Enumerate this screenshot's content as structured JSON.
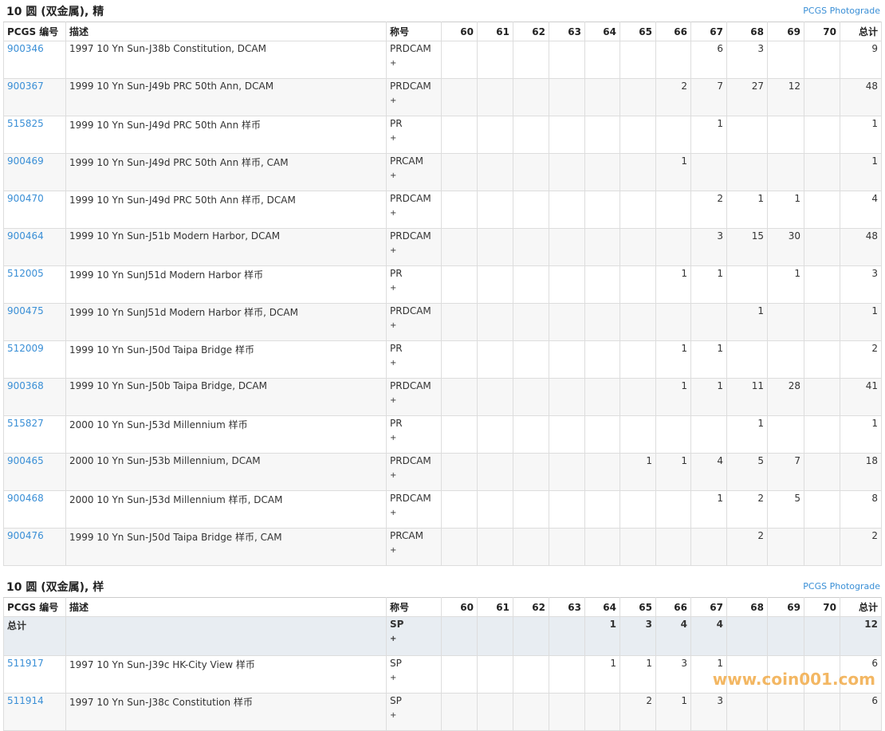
{
  "sections": [
    {
      "title": "10 圆 (双金属), 精",
      "link": "PCGS Photograde",
      "headers": [
        "PCGS 编号",
        "描述",
        "称号",
        "60",
        "61",
        "62",
        "63",
        "64",
        "65",
        "66",
        "67",
        "68",
        "69",
        "70",
        "总计"
      ],
      "total_row": null,
      "rows": [
        {
          "id": "900346",
          "description": "1997 10 Yn Sun-J38b Constitution, DCAM",
          "designation": "PRDCAM",
          "plus": "+",
          "grades": [
            null,
            null,
            null,
            null,
            null,
            null,
            null,
            6,
            3,
            null,
            null
          ],
          "total": 9
        },
        {
          "id": "900367",
          "description": "1999 10 Yn Sun-J49b PRC 50th Ann, DCAM",
          "designation": "PRDCAM",
          "plus": "+",
          "grades": [
            null,
            null,
            null,
            null,
            null,
            null,
            2,
            7,
            27,
            12,
            null
          ],
          "total": 48
        },
        {
          "id": "515825",
          "description": "1999 10 Yn Sun-J49d PRC 50th Ann 样币",
          "designation": "PR",
          "plus": "+",
          "grades": [
            null,
            null,
            null,
            null,
            null,
            null,
            null,
            1,
            null,
            null,
            null
          ],
          "total": 1
        },
        {
          "id": "900469",
          "description": "1999 10 Yn Sun-J49d PRC 50th Ann 样币, CAM",
          "designation": "PRCAM",
          "plus": "+",
          "grades": [
            null,
            null,
            null,
            null,
            null,
            null,
            1,
            null,
            null,
            null,
            null
          ],
          "total": 1
        },
        {
          "id": "900470",
          "description": "1999 10 Yn Sun-J49d PRC 50th Ann 样币, DCAM",
          "designation": "PRDCAM",
          "plus": "+",
          "grades": [
            null,
            null,
            null,
            null,
            null,
            null,
            null,
            2,
            1,
            1,
            null
          ],
          "total": 4
        },
        {
          "id": "900464",
          "description": "1999 10 Yn Sun-J51b Modern Harbor, DCAM",
          "designation": "PRDCAM",
          "plus": "+",
          "grades": [
            null,
            null,
            null,
            null,
            null,
            null,
            null,
            3,
            15,
            30,
            null
          ],
          "total": 48
        },
        {
          "id": "512005",
          "description": "1999 10 Yn SunJ51d Modern Harbor 样币",
          "designation": "PR",
          "plus": "+",
          "grades": [
            null,
            null,
            null,
            null,
            null,
            null,
            1,
            1,
            null,
            1,
            null
          ],
          "total": 3
        },
        {
          "id": "900475",
          "description": "1999 10 Yn SunJ51d Modern Harbor 样币, DCAM",
          "designation": "PRDCAM",
          "plus": "+",
          "grades": [
            null,
            null,
            null,
            null,
            null,
            null,
            null,
            null,
            1,
            null,
            null
          ],
          "total": 1
        },
        {
          "id": "512009",
          "description": "1999 10 Yn Sun-J50d Taipa Bridge 样币",
          "designation": "PR",
          "plus": "+",
          "grades": [
            null,
            null,
            null,
            null,
            null,
            null,
            1,
            1,
            null,
            null,
            null
          ],
          "total": 2
        },
        {
          "id": "900368",
          "description": "1999 10 Yn Sun-J50b Taipa Bridge, DCAM",
          "designation": "PRDCAM",
          "plus": "+",
          "grades": [
            null,
            null,
            null,
            null,
            null,
            null,
            1,
            1,
            11,
            28,
            null
          ],
          "total": 41
        },
        {
          "id": "515827",
          "description": "2000 10 Yn Sun-J53d Millennium 样币",
          "designation": "PR",
          "plus": "+",
          "grades": [
            null,
            null,
            null,
            null,
            null,
            null,
            null,
            null,
            1,
            null,
            null
          ],
          "total": 1
        },
        {
          "id": "900465",
          "description": "2000 10 Yn Sun-J53b Millennium, DCAM",
          "designation": "PRDCAM",
          "plus": "+",
          "grades": [
            null,
            null,
            null,
            null,
            null,
            1,
            1,
            4,
            5,
            7,
            null
          ],
          "total": 18
        },
        {
          "id": "900468",
          "description": "2000 10 Yn Sun-J53d Millennium 样币, DCAM",
          "designation": "PRDCAM",
          "plus": "+",
          "grades": [
            null,
            null,
            null,
            null,
            null,
            null,
            null,
            1,
            2,
            5,
            null
          ],
          "total": 8
        },
        {
          "id": "900476",
          "description": "1999 10 Yn Sun-J50d Taipa Bridge 样币, CAM",
          "designation": "PRCAM",
          "plus": "+",
          "grades": [
            null,
            null,
            null,
            null,
            null,
            null,
            null,
            null,
            2,
            null,
            null
          ],
          "total": 2
        }
      ]
    },
    {
      "title": "10 圆 (双金属), 样",
      "link": "PCGS Photograde",
      "headers": [
        "PCGS 编号",
        "描述",
        "称号",
        "60",
        "61",
        "62",
        "63",
        "64",
        "65",
        "66",
        "67",
        "68",
        "69",
        "70",
        "总计"
      ],
      "total_row": {
        "id": "总计",
        "description": null,
        "designation": "SP",
        "plus": "+",
        "grades": [
          null,
          null,
          null,
          null,
          1,
          3,
          4,
          4,
          null,
          null,
          null
        ],
        "total": 12
      },
      "rows": [
        {
          "id": "511917",
          "description": "1997 10 Yn Sun-J39c HK-City View 样币",
          "designation": "SP",
          "plus": "+",
          "grades": [
            null,
            null,
            null,
            null,
            1,
            1,
            3,
            1,
            null,
            null,
            null
          ],
          "total": 6
        },
        {
          "id": "511914",
          "description": "1997 10 Yn Sun-J38c Constitution 样币",
          "designation": "SP",
          "plus": "+",
          "grades": [
            null,
            null,
            null,
            null,
            null,
            2,
            1,
            3,
            null,
            null,
            null
          ],
          "total": 6
        }
      ]
    }
  ],
  "watermark": "www.coin001.com"
}
